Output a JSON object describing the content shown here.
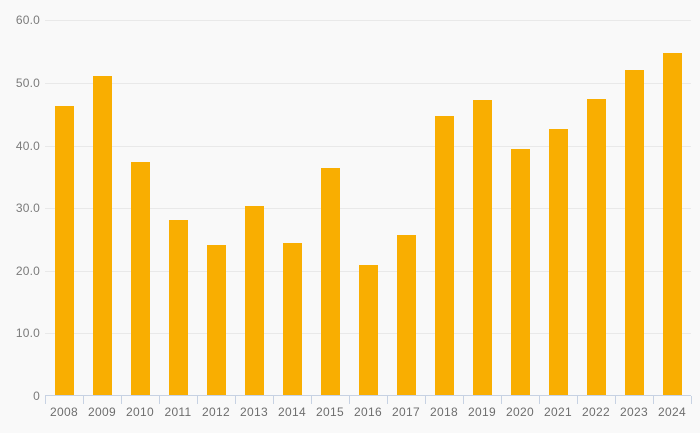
{
  "chart_data": {
    "type": "bar",
    "title": "",
    "xlabel": "",
    "ylabel": "",
    "categories": [
      "2008",
      "2009",
      "2010",
      "2011",
      "2012",
      "2013",
      "2014",
      "2015",
      "2016",
      "2017",
      "2018",
      "2019",
      "2020",
      "2021",
      "2022",
      "2023",
      "2024"
    ],
    "values": [
      46.4,
      51.1,
      37.4,
      28.1,
      24.1,
      30.3,
      24.5,
      36.4,
      20.9,
      25.7,
      44.8,
      47.3,
      39.4,
      42.7,
      47.5,
      52.0,
      54.8
    ],
    "series": [
      {
        "name": "",
        "values": [
          46.4,
          51.1,
          37.4,
          28.1,
          24.1,
          30.3,
          24.5,
          36.4,
          20.9,
          25.7,
          44.8,
          47.3,
          39.4,
          42.7,
          47.5,
          52.0,
          54.8
        ]
      }
    ],
    "ylim": [
      0,
      60
    ],
    "ytick_interval": 10,
    "ytick_labels": [
      "0",
      "10.0",
      "20.0",
      "30.0",
      "40.0",
      "50.0",
      "60.0"
    ],
    "grid": true,
    "legend": false,
    "colors": {
      "bar": "#F9AE01",
      "background": "#f9f9f9",
      "gridline": "#e9e9e9",
      "axis": "#c7d2e3",
      "y_label_text": "#7b7b7b",
      "x_label_text": "#6e6e6e"
    }
  }
}
